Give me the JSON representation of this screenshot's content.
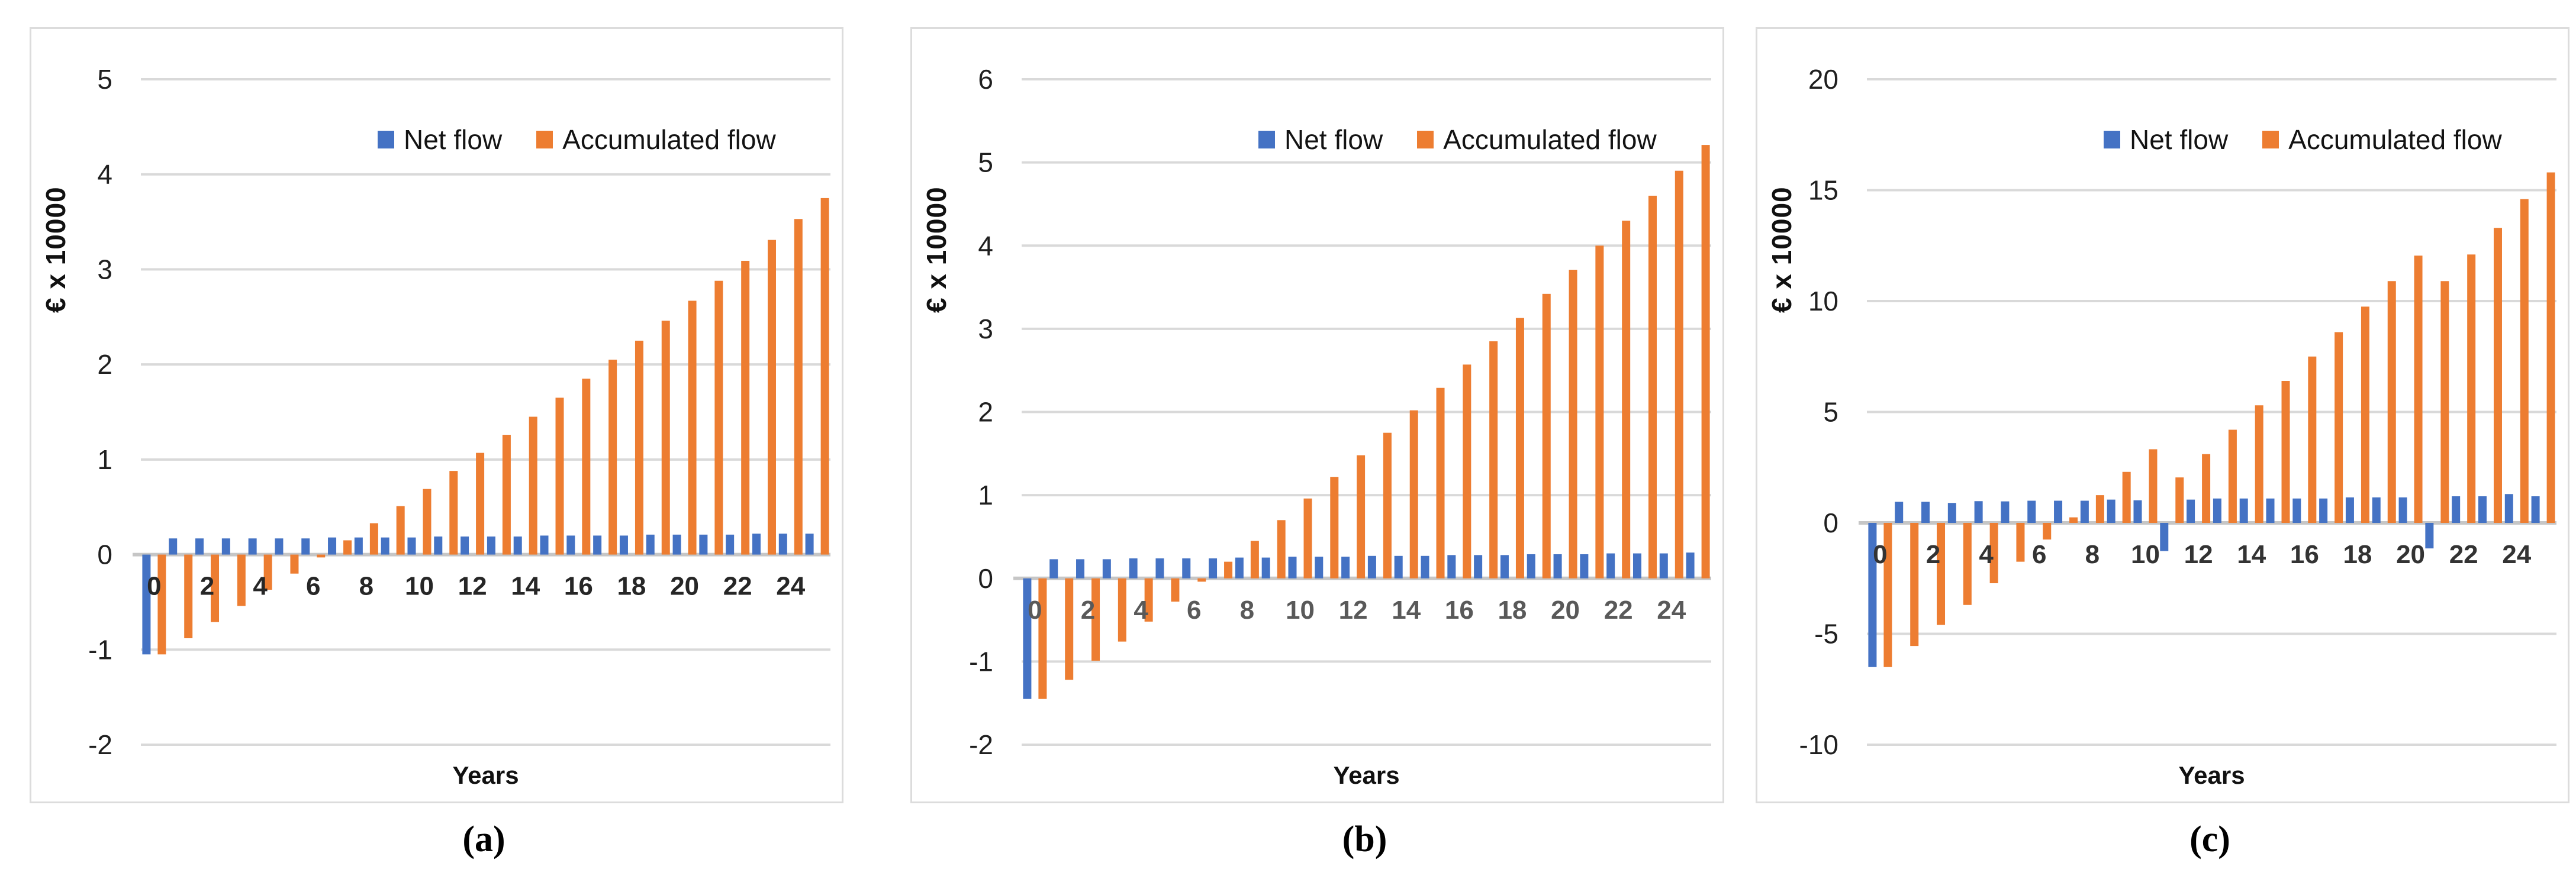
{
  "page": {
    "background": "#ffffff"
  },
  "chart_data": [
    {
      "type": "bar",
      "caption": "(a)",
      "y_axis_title": "€ x 10000",
      "x_axis_title": "Years",
      "legend_position": "top",
      "grid": true,
      "gridline_color": "#d9d9d9",
      "axis_color": "#c6c6c6",
      "xtick_color": "#262626",
      "ytick_color": "#1f1f1f",
      "ylim": [
        -2,
        5
      ],
      "yticks": [
        5,
        4,
        3,
        2,
        1,
        0,
        -1,
        -2
      ],
      "categories": [
        0,
        1,
        2,
        3,
        4,
        5,
        6,
        7,
        8,
        9,
        10,
        11,
        12,
        13,
        14,
        15,
        16,
        17,
        18,
        19,
        20,
        21,
        22,
        23,
        24,
        25
      ],
      "xtick_labels": [
        0,
        2,
        4,
        6,
        8,
        10,
        12,
        14,
        16,
        18,
        20,
        22,
        24
      ],
      "series": [
        {
          "name": "Net flow",
          "color": "#4472C4",
          "values": [
            -1.05,
            0.17,
            0.17,
            0.17,
            0.17,
            0.17,
            0.17,
            0.18,
            0.18,
            0.18,
            0.18,
            0.19,
            0.19,
            0.19,
            0.19,
            0.2,
            0.2,
            0.2,
            0.2,
            0.21,
            0.21,
            0.21,
            0.21,
            0.22,
            0.22,
            0.22
          ]
        },
        {
          "name": "Accumulated flow",
          "color": "#ED7D31",
          "values": [
            -1.05,
            -0.88,
            -0.71,
            -0.54,
            -0.37,
            -0.2,
            -0.03,
            0.15,
            0.33,
            0.51,
            0.69,
            0.88,
            1.07,
            1.26,
            1.45,
            1.65,
            1.85,
            2.05,
            2.25,
            2.46,
            2.67,
            2.88,
            3.09,
            3.31,
            3.53,
            3.75
          ]
        }
      ]
    },
    {
      "type": "bar",
      "caption": "(b)",
      "y_axis_title": "€ x 10000",
      "x_axis_title": "Years",
      "legend_position": "top",
      "grid": true,
      "gridline_color": "#d9d9d9",
      "axis_color": "#c6c6c6",
      "xtick_color": "#595959",
      "ytick_color": "#1f1f1f",
      "ylim": [
        -2,
        6
      ],
      "yticks": [
        6,
        5,
        4,
        3,
        2,
        1,
        0,
        -1,
        -2
      ],
      "categories": [
        0,
        1,
        2,
        3,
        4,
        5,
        6,
        7,
        8,
        9,
        10,
        11,
        12,
        13,
        14,
        15,
        16,
        17,
        18,
        19,
        20,
        21,
        22,
        23,
        24,
        25
      ],
      "xtick_labels": [
        0,
        2,
        4,
        6,
        8,
        10,
        12,
        14,
        16,
        18,
        20,
        22,
        24
      ],
      "series": [
        {
          "name": "Net flow",
          "color": "#4472C4",
          "values": [
            -1.45,
            0.23,
            0.23,
            0.23,
            0.24,
            0.24,
            0.24,
            0.24,
            0.25,
            0.25,
            0.26,
            0.26,
            0.26,
            0.27,
            0.27,
            0.27,
            0.28,
            0.28,
            0.28,
            0.29,
            0.29,
            0.29,
            0.3,
            0.3,
            0.3,
            0.31
          ]
        },
        {
          "name": "Accumulated flow",
          "color": "#ED7D31",
          "values": [
            -1.45,
            -1.22,
            -0.99,
            -0.76,
            -0.52,
            -0.28,
            -0.04,
            0.2,
            0.45,
            0.7,
            0.96,
            1.22,
            1.48,
            1.75,
            2.02,
            2.29,
            2.57,
            2.85,
            3.13,
            3.42,
            3.71,
            4.0,
            4.3,
            4.6,
            4.9,
            5.21
          ]
        }
      ]
    },
    {
      "type": "bar",
      "caption": "(c)",
      "y_axis_title": "€ x 10000",
      "x_axis_title": "Years",
      "legend_position": "top",
      "grid": true,
      "gridline_color": "#d9d9d9",
      "axis_color": "#c6c6c6",
      "xtick_color": "#333333",
      "ytick_color": "#1f1f1f",
      "ylim": [
        -10,
        20
      ],
      "yticks": [
        20,
        15,
        10,
        5,
        0,
        -5,
        -10
      ],
      "categories": [
        0,
        1,
        2,
        3,
        4,
        5,
        6,
        7,
        8,
        9,
        10,
        11,
        12,
        13,
        14,
        15,
        16,
        17,
        18,
        19,
        20,
        21,
        22,
        23,
        24,
        25
      ],
      "xtick_labels": [
        0,
        2,
        4,
        6,
        8,
        10,
        12,
        14,
        16,
        18,
        20,
        22,
        24
      ],
      "series": [
        {
          "name": "Net flow",
          "color": "#4472C4",
          "values": [
            -6.5,
            0.95,
            0.95,
            0.9,
            0.98,
            0.97,
            1.0,
            1.0,
            1.0,
            1.05,
            1.02,
            -1.27,
            1.05,
            1.1,
            1.1,
            1.1,
            1.1,
            1.1,
            1.15,
            1.15,
            1.15,
            -1.15,
            1.2,
            1.2,
            1.3,
            1.2
          ]
        },
        {
          "name": "Accumulated flow",
          "color": "#ED7D31",
          "values": [
            -6.5,
            -5.55,
            -4.6,
            -3.7,
            -2.72,
            -1.75,
            -0.75,
            0.25,
            1.25,
            2.3,
            3.32,
            2.05,
            3.1,
            4.2,
            5.3,
            6.4,
            7.5,
            8.6,
            9.75,
            10.9,
            12.05,
            10.9,
            12.1,
            13.3,
            14.6,
            15.8
          ]
        }
      ]
    }
  ]
}
